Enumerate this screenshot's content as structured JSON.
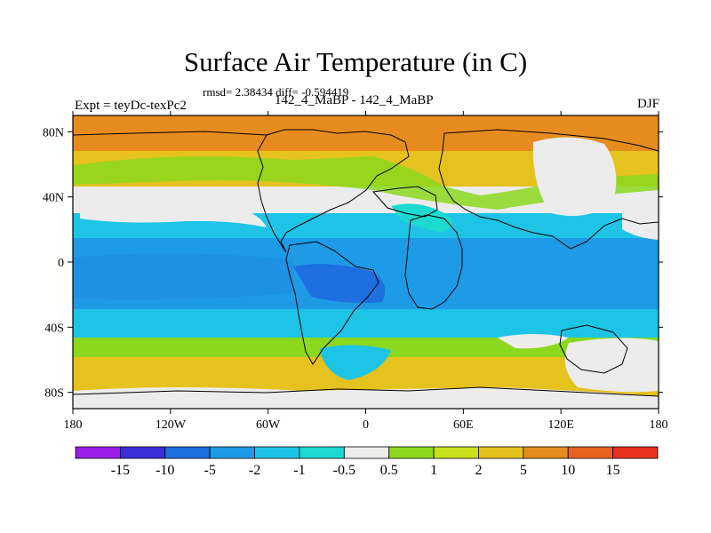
{
  "map": {
    "title": "Surface Air Temperature (in C)",
    "stats": "rmsd= 2.38434 diff= -0.594419",
    "experiment_label": "Expt = teyDc-texPc2",
    "subtitle": "142_4_MaBP - 142_4_MaBP",
    "season": "DJF",
    "lon_ticks": [
      "180",
      "120W",
      "60W",
      "0",
      "60E",
      "120E",
      "180"
    ],
    "lat_ticks": [
      "80N",
      "40N",
      "0",
      "40S",
      "80S"
    ]
  },
  "colorbar": {
    "colors": [
      "#9b1ee8",
      "#3a2fd6",
      "#1e6fe0",
      "#1e9be6",
      "#1ec4e6",
      "#1ed9cf",
      "#ececec",
      "#8cd81e",
      "#c8e01e",
      "#e6c21e",
      "#e68c1e",
      "#e6641e",
      "#e6321e"
    ],
    "labels": [
      "-15",
      "-10",
      "-5",
      "-2",
      "-1",
      "-0.5",
      "0.5",
      "1",
      "2",
      "5",
      "10",
      "15"
    ]
  },
  "colors": {
    "warm": "#e68c1e",
    "mild": "#e6c21e",
    "neutral": "#ececec",
    "cool": "#1ec4e6",
    "cold": "#1e9be6",
    "coldest": "#1e6fe0"
  }
}
